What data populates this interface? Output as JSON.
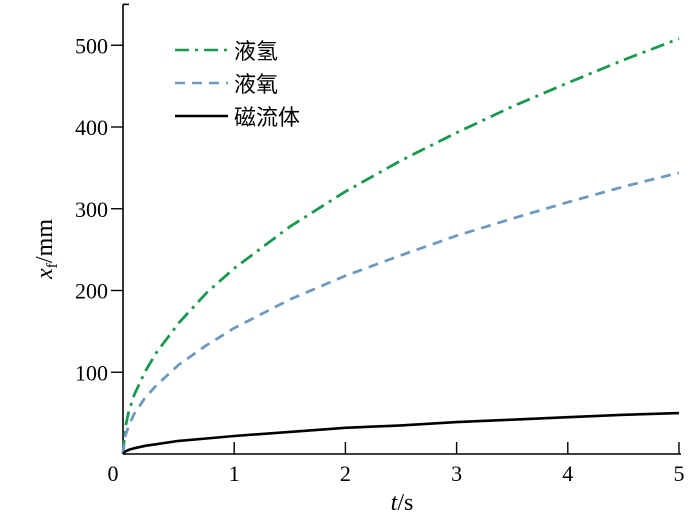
{
  "chart_data": {
    "type": "line",
    "title": "",
    "xlabel": {
      "var": "t",
      "unit": "/s"
    },
    "ylabel": {
      "var": "x",
      "sub": "f",
      "unit": "/mm"
    },
    "xlim": [
      0,
      5
    ],
    "ylim": [
      0,
      550
    ],
    "xticks": [
      0,
      1,
      2,
      3,
      4,
      5
    ],
    "yticks": [
      100,
      200,
      300,
      400,
      500
    ],
    "grid": false,
    "legend_position": "top-left",
    "x": [
      0,
      0.02,
      0.05,
      0.1,
      0.2,
      0.3,
      0.5,
      0.75,
      1,
      1.5,
      2,
      2.5,
      3,
      3.5,
      4,
      4.5,
      5
    ],
    "series": [
      {
        "name": "液氢",
        "color": "#1a9850",
        "style": "dash-dot",
        "values": [
          0,
          32,
          51,
          72,
          101,
          124,
          160,
          197,
          227,
          278,
          321,
          359,
          393,
          425,
          454,
          482,
          508
        ]
      },
      {
        "name": "液氧",
        "color": "#6e9ac0",
        "style": "dashed",
        "values": [
          0,
          22,
          34,
          49,
          69,
          84,
          109,
          133,
          154,
          189,
          218,
          243,
          267,
          288,
          308,
          327,
          344
        ]
      },
      {
        "name": "磁流体",
        "color": "#000000",
        "style": "solid",
        "values": [
          0,
          3,
          5,
          7,
          10,
          12,
          16,
          19,
          22,
          27,
          32,
          35,
          39,
          42,
          45,
          48,
          50
        ]
      }
    ]
  }
}
